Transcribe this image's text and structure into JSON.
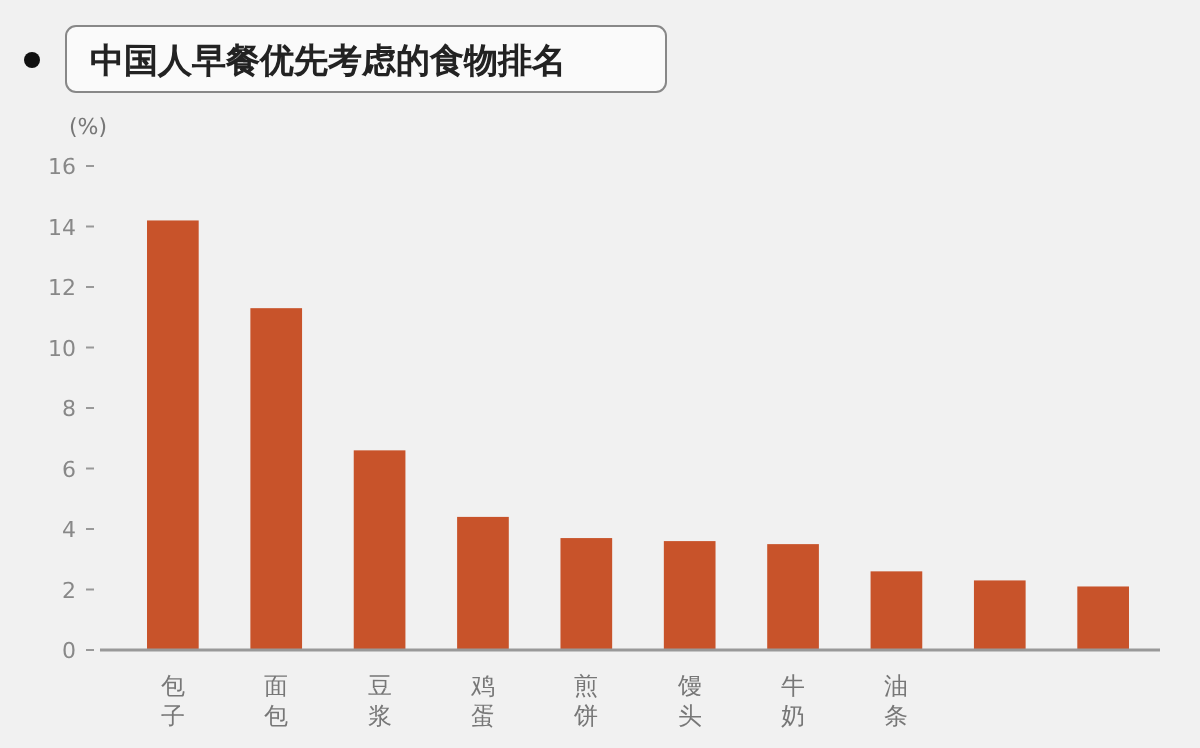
{
  "chart_data": {
    "type": "bar",
    "title": "中国人早餐优先考虑的食物排名",
    "ylabel": "(%)",
    "categories": [
      "包子",
      "面包",
      "豆浆",
      "鸡蛋",
      "煎饼",
      "馒头",
      "牛奶",
      "油条",
      null,
      null
    ],
    "values": [
      14.2,
      11.3,
      6.6,
      4.4,
      3.7,
      3.6,
      3.5,
      2.6,
      2.3,
      2.1
    ],
    "color": "#c8532a",
    "ylim": [
      0,
      16
    ],
    "yticks": [
      0,
      2,
      4,
      6,
      8,
      10,
      12,
      14,
      16
    ],
    "grid": false
  }
}
